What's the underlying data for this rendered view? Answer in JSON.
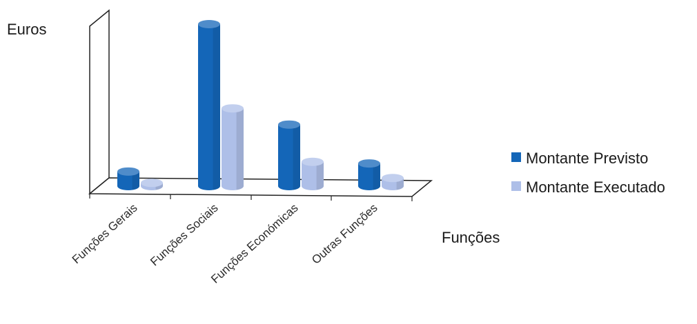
{
  "chart_data": {
    "type": "bar",
    "ylabel": "Euros",
    "xlabel": "Funções",
    "categories": [
      "Funções Gerais",
      "Funções Sociais",
      "Funções Económicas",
      "Outras Funções"
    ],
    "series": [
      {
        "name": "Montante Previsto",
        "values": [
          9,
          100,
          38,
          14
        ],
        "color": "#1466b8"
      },
      {
        "name": "Montante Executado",
        "values": [
          2,
          48,
          15,
          5
        ],
        "color": "#aebfe8"
      }
    ],
    "ylim": [
      0,
      100
    ],
    "grid": false,
    "legend_position": "right"
  }
}
